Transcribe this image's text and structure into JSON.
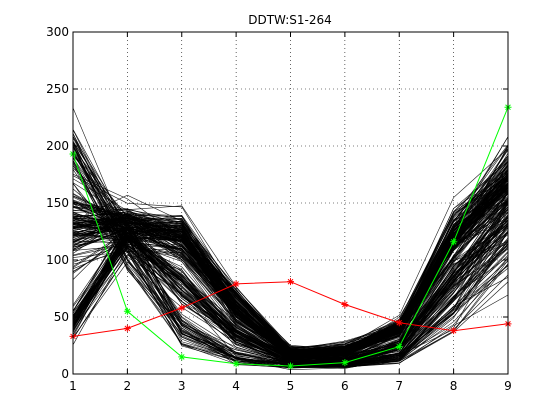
{
  "chart_data": {
    "type": "line",
    "title": "DDTW:S1-264",
    "xlabel": "",
    "ylabel": "",
    "xlim": [
      1,
      9
    ],
    "ylim": [
      0,
      300
    ],
    "xticks": [
      1,
      2,
      3,
      4,
      5,
      6,
      7,
      8,
      9
    ],
    "yticks": [
      0,
      50,
      100,
      150,
      200,
      250,
      300
    ],
    "grid": true,
    "legend": "none",
    "x": [
      1,
      2,
      3,
      4,
      5,
      6,
      7,
      8,
      9
    ],
    "background_series_count": 264,
    "background_series_color": "#000000",
    "background_families": [
      {
        "count": 150,
        "values": [
          130,
          130,
          120,
          60,
          18,
          20,
          40,
          120,
          170
        ],
        "spread": [
          60,
          28,
          30,
          25,
          10,
          10,
          12,
          35,
          45
        ]
      },
      {
        "count": 70,
        "values": [
          45,
          120,
          80,
          35,
          12,
          12,
          25,
          90,
          140
        ],
        "spread": [
          20,
          30,
          35,
          20,
          8,
          8,
          12,
          40,
          50
        ]
      },
      {
        "count": 44,
        "values": [
          200,
          110,
          40,
          15,
          8,
          8,
          15,
          60,
          120
        ],
        "spread": [
          40,
          40,
          25,
          10,
          5,
          5,
          10,
          40,
          60
        ]
      }
    ],
    "series": [
      {
        "color": "#ff0000",
        "marker": "*",
        "values": [
          33,
          40,
          58,
          79,
          81,
          61,
          45,
          38,
          44
        ]
      },
      {
        "color": "#00ff00",
        "marker": "*",
        "values": [
          193,
          55,
          15,
          9,
          7,
          10,
          24,
          116,
          234
        ]
      }
    ]
  }
}
